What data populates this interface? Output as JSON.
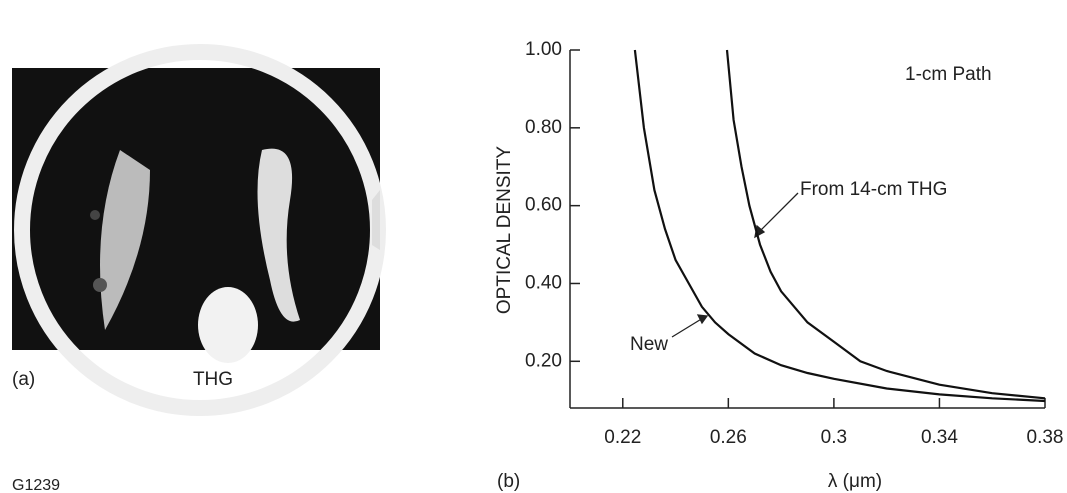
{
  "figure_id": "G1239",
  "panel_a": {
    "label": "(a)",
    "caption": "THG"
  },
  "panel_b_label": "(b)",
  "chart_data": {
    "type": "line",
    "x_label": "λ (μm)",
    "y_label": "OPTICAL DENSITY",
    "annotations": [
      "1-cm Path",
      "From 14-cm THG",
      "New"
    ],
    "xlim": [
      0.2,
      0.38
    ],
    "xticks": [
      0.22,
      0.26,
      0.3,
      0.34,
      0.38
    ],
    "ylim": [
      0.08,
      1.0
    ],
    "yticks": [
      {
        "value": 0.2,
        "label": "0.20"
      },
      {
        "value": 0.4,
        "label": "0.40"
      },
      {
        "value": 0.6,
        "label": "0.60"
      },
      {
        "value": 0.8,
        "label": "0.80"
      },
      {
        "value": 1.0,
        "label": "1.00"
      }
    ],
    "series": [
      {
        "name": "New",
        "color": "#111111",
        "x": [
          0.2246,
          0.228,
          0.232,
          0.236,
          0.24,
          0.245,
          0.25,
          0.255,
          0.26,
          0.27,
          0.28,
          0.29,
          0.3,
          0.32,
          0.34,
          0.36,
          0.38
        ],
        "values": [
          1.0,
          0.8,
          0.64,
          0.54,
          0.46,
          0.4,
          0.34,
          0.3,
          0.27,
          0.22,
          0.19,
          0.17,
          0.155,
          0.13,
          0.115,
          0.105,
          0.098
        ]
      },
      {
        "name": "From 14-cm THG",
        "color": "#111111",
        "x": [
          0.2595,
          0.262,
          0.265,
          0.268,
          0.272,
          0.276,
          0.28,
          0.29,
          0.3,
          0.31,
          0.32,
          0.34,
          0.36,
          0.38
        ],
        "values": [
          1.0,
          0.82,
          0.7,
          0.6,
          0.5,
          0.43,
          0.38,
          0.3,
          0.25,
          0.2,
          0.175,
          0.14,
          0.118,
          0.105
        ]
      }
    ]
  }
}
